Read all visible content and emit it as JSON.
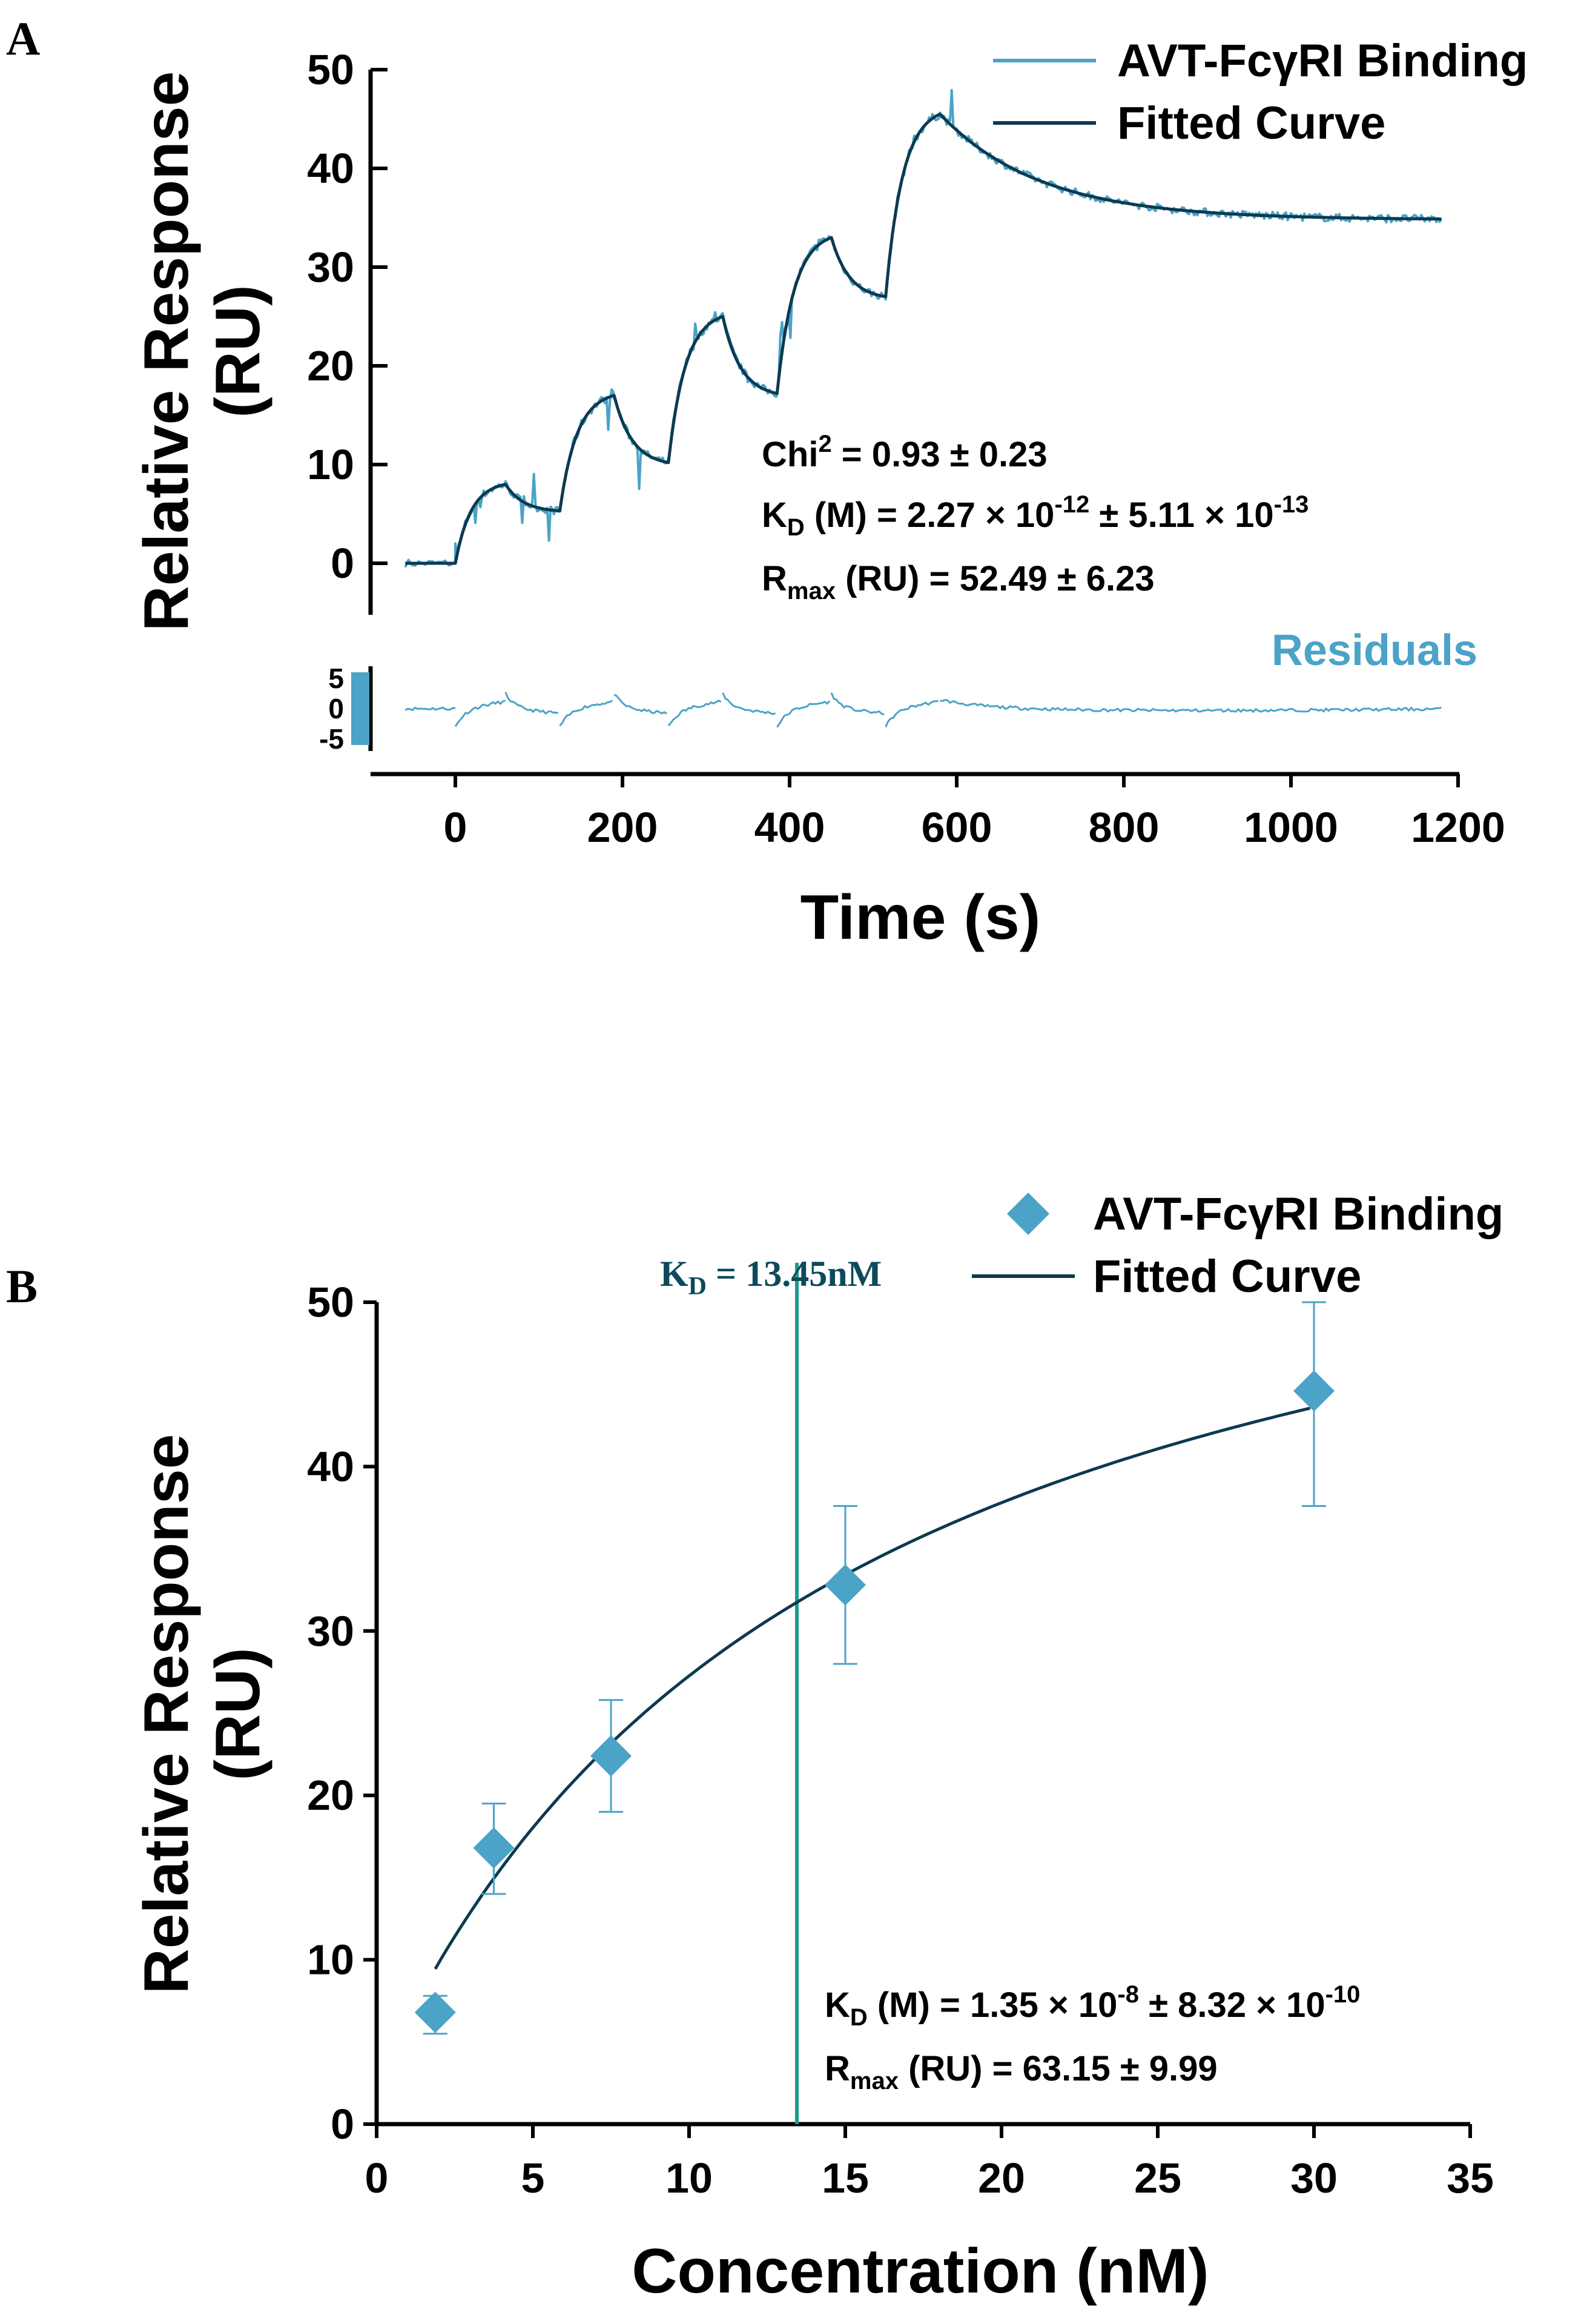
{
  "colors": {
    "observed": "#4ba3c7",
    "fitted": "#0c3a4f",
    "kd_line": "#1a9b8e",
    "kd_label": "#0c4a5c",
    "axis": "#000000"
  },
  "chart_data": [
    {
      "panel": "A",
      "type": "line",
      "title": "",
      "xlabel": "Time (s)",
      "ylabel_line1": "Relative Response",
      "ylabel_line2": "(RU)",
      "xlim": [
        -100,
        1200
      ],
      "ylim": [
        -5,
        50
      ],
      "xticks": [
        0,
        200,
        400,
        600,
        800,
        1000,
        1200
      ],
      "yticks": [
        0,
        10,
        20,
        30,
        40,
        50
      ],
      "legend": {
        "position": "top-right",
        "entries": [
          {
            "label": "AVT-FcγRI Binding",
            "kind": "line",
            "color_key": "observed"
          },
          {
            "label": "Fitted Curve",
            "kind": "line",
            "color_key": "fitted"
          }
        ]
      },
      "cycles": [
        {
          "start": 0,
          "end": 60,
          "baseline_start": 0,
          "peak": 8.0,
          "dissoc_end": 125,
          "dissoc_value": 5.3
        },
        {
          "start": 125,
          "end": 190,
          "baseline_start": 5.3,
          "peak": 17.0,
          "dissoc_end": 255,
          "dissoc_value": 10.2
        },
        {
          "start": 255,
          "end": 320,
          "baseline_start": 10.2,
          "peak": 25.0,
          "dissoc_end": 385,
          "dissoc_value": 17.2
        },
        {
          "start": 385,
          "end": 450,
          "baseline_start": 17.2,
          "peak": 33.0,
          "dissoc_end": 515,
          "dissoc_value": 27.0
        },
        {
          "start": 515,
          "end": 580,
          "baseline_start": 27.0,
          "peak": 45.5,
          "dissoc_end": 1180,
          "dissoc_value": 34.8
        }
      ],
      "baseline_range": [
        -60,
        0
      ],
      "stats": {
        "chi2_prefix": "Chi",
        "chi2_sup": "2",
        "chi2_value": " = 0.93 ± 0.23",
        "kd_prefix": "K",
        "kd_sub": "D",
        "kd_text": " (M) = 2.27 × 10",
        "kd_exp1": "-12",
        "kd_mid": " ± 5.11 × 10",
        "kd_exp2": "-13",
        "rmax_prefix": "R",
        "rmax_sub": "max",
        "rmax_value": " (RU) = 52.49 ± 6.23"
      },
      "residuals": {
        "title": "Residuals",
        "ylim": [
          -5,
          5
        ],
        "yticks": [
          5,
          0,
          -5
        ]
      }
    },
    {
      "panel": "B",
      "type": "scatter",
      "title": "",
      "xlabel": "Concentration (nM)",
      "ylabel_line1": "Relative Response",
      "ylabel_line2": "(RU)",
      "xlim": [
        0,
        35
      ],
      "ylim": [
        0,
        50
      ],
      "xticks": [
        0,
        5,
        10,
        15,
        20,
        25,
        30,
        35
      ],
      "yticks": [
        0,
        10,
        20,
        30,
        40,
        50
      ],
      "legend": {
        "position": "top-right",
        "entries": [
          {
            "label": "AVT-FcγRI Binding",
            "kind": "diamond",
            "color_key": "observed"
          },
          {
            "label": "Fitted Curve",
            "kind": "line",
            "color_key": "fitted"
          }
        ]
      },
      "points": [
        {
          "x": 1.875,
          "y": 6.8,
          "err_low": 5.5,
          "err_high": 7.8
        },
        {
          "x": 3.75,
          "y": 16.8,
          "err_low": 14.0,
          "err_high": 19.5
        },
        {
          "x": 7.5,
          "y": 22.4,
          "err_low": 19.0,
          "err_high": 25.8
        },
        {
          "x": 15,
          "y": 32.8,
          "err_low": 28.0,
          "err_high": 37.6
        },
        {
          "x": 30,
          "y": 44.6,
          "err_low": 37.6,
          "err_high": 50.0
        }
      ],
      "fit": {
        "model": "one-site binding",
        "rmax": 63.15,
        "kd_nm": 13.45,
        "x_from": 1.875,
        "x_to": 30
      },
      "kd_line": {
        "x": 13.45,
        "label_prefix": "K",
        "label_sub": "D",
        "label_value": " = 13.45nM"
      },
      "stats": {
        "kd_prefix": "K",
        "kd_sub": "D",
        "kd_text": " (M) = 1.35 × 10",
        "kd_exp1": "-8",
        "kd_mid": " ± 8.32 × 10",
        "kd_exp2": "-10",
        "rmax_prefix": "R",
        "rmax_sub": "max",
        "rmax_value": " (RU) = 63.15 ± 9.99"
      }
    }
  ]
}
